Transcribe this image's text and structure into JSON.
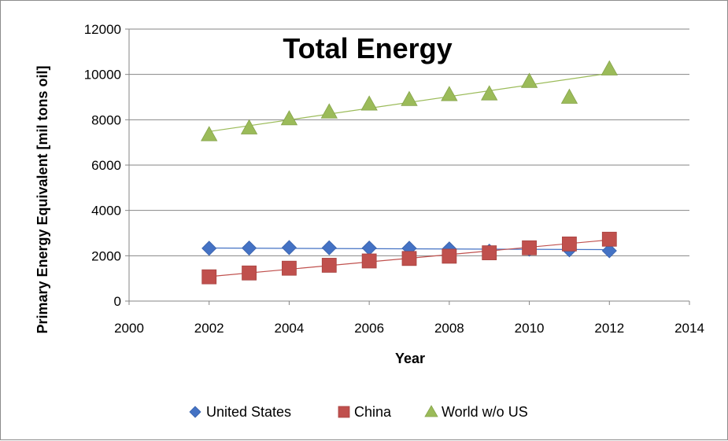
{
  "chart_data": {
    "type": "scatter",
    "title": "Total Energy",
    "xlabel": "Year",
    "ylabel": "Primary Energy Equivalent [mil tons oil]",
    "xlim": [
      2000,
      2014
    ],
    "ylim": [
      0,
      12000
    ],
    "x_ticks": [
      2000,
      2002,
      2004,
      2006,
      2008,
      2010,
      2012,
      2014
    ],
    "y_ticks": [
      0,
      2000,
      4000,
      6000,
      8000,
      10000,
      12000
    ],
    "grid": true,
    "legend_position": "bottom",
    "series": [
      {
        "name": "United States",
        "marker": "diamond",
        "color": "#4472c4",
        "x": [
          2002,
          2003,
          2004,
          2005,
          2006,
          2007,
          2008,
          2009,
          2010,
          2011,
          2012
        ],
        "y": [
          2330,
          2340,
          2360,
          2350,
          2340,
          2330,
          2300,
          2200,
          2290,
          2260,
          2220
        ],
        "trendline": [
          [
            2002,
            2340
          ],
          [
            2012,
            2270
          ]
        ]
      },
      {
        "name": "China",
        "marker": "square",
        "color": "#c0504d",
        "x": [
          2002,
          2003,
          2004,
          2005,
          2006,
          2007,
          2008,
          2009,
          2010,
          2011,
          2012
        ],
        "y": [
          1070,
          1240,
          1450,
          1580,
          1770,
          1880,
          1980,
          2130,
          2350,
          2520,
          2730
        ],
        "trendline": [
          [
            2002,
            1080
          ],
          [
            2012,
            2700
          ]
        ]
      },
      {
        "name": "World w/o US",
        "marker": "triangle",
        "color": "#9bbb59",
        "x": [
          2002,
          2003,
          2004,
          2005,
          2006,
          2007,
          2008,
          2009,
          2010,
          2011,
          2012
        ],
        "y": [
          7350,
          7650,
          8050,
          8350,
          8700,
          8900,
          9120,
          9150,
          9700,
          9000,
          10250
        ],
        "trendline": [
          [
            2002,
            7480
          ],
          [
            2012,
            10050
          ]
        ]
      }
    ]
  }
}
